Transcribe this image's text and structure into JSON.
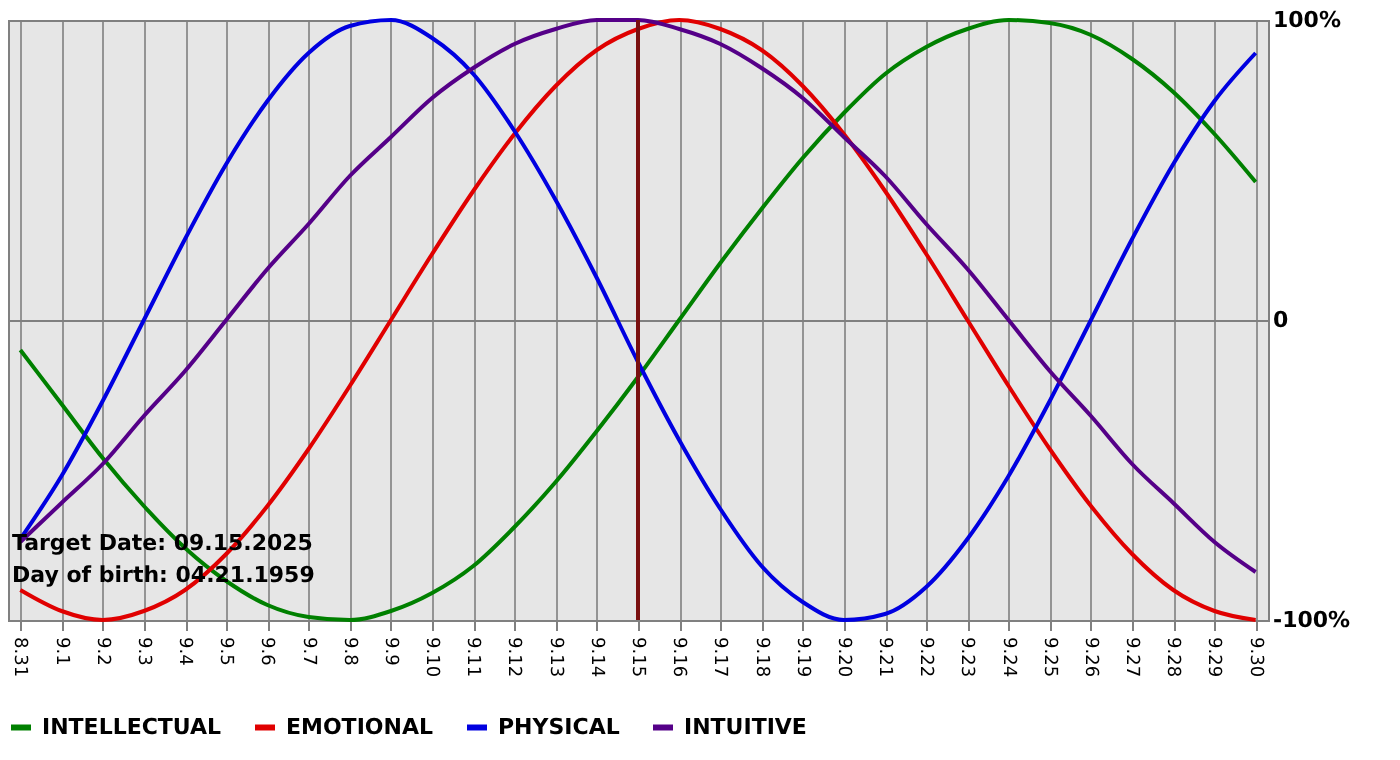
{
  "chart_data": {
    "type": "line",
    "categories": [
      "8.31",
      "9.1",
      "9.2",
      "9.3",
      "9.4",
      "9.5",
      "9.6",
      "9.7",
      "9.8",
      "9.9",
      "9.10",
      "9.11",
      "9.12",
      "9.13",
      "9.14",
      "9.15",
      "9.16",
      "9.17",
      "9.18",
      "9.19",
      "9.20",
      "9.21",
      "9.22",
      "9.23",
      "9.24",
      "9.25",
      "9.26",
      "9.27",
      "9.28",
      "9.29",
      "9.30"
    ],
    "series": [
      {
        "name": "INTELLECTUAL",
        "color": "#008000",
        "values": [
          -10,
          -28,
          -46,
          -62,
          -76,
          -87,
          -95,
          -99,
          -100,
          -97,
          -91,
          -82,
          -69,
          -54,
          -37,
          -19,
          0,
          19,
          37,
          54,
          69,
          82,
          91,
          97,
          100,
          99,
          95,
          87,
          76,
          62,
          46
        ]
      },
      {
        "name": "EMOTIONAL",
        "color": "#e00000",
        "values": [
          -90,
          -97,
          -100,
          -97,
          -90,
          -78,
          -62,
          -43,
          -22,
          0,
          22,
          43,
          62,
          78,
          90,
          97,
          100,
          97,
          90,
          78,
          62,
          43,
          22,
          0,
          -22,
          -43,
          -62,
          -78,
          -90,
          -97,
          -100
        ]
      },
      {
        "name": "PHYSICAL",
        "color": "#0000e0",
        "values": [
          -73,
          -52,
          -27,
          0,
          27,
          52,
          73,
          89,
          98,
          100,
          94,
          82,
          63,
          40,
          14,
          -14,
          -40,
          -63,
          -82,
          -94,
          -100,
          -98,
          -89,
          -73,
          -52,
          -27,
          0,
          27,
          52,
          73,
          89
        ]
      },
      {
        "name": "INTUITIVE",
        "color": "#550088",
        "values": [
          -74,
          -61,
          -48,
          -32,
          -17,
          0,
          17,
          32,
          48,
          61,
          74,
          84,
          92,
          97,
          100,
          100,
          97,
          92,
          84,
          74,
          61,
          48,
          32,
          17,
          0,
          -17,
          -32,
          -48,
          -61,
          -74,
          -84
        ]
      }
    ],
    "ylim": [
      -100,
      100
    ],
    "yticks": [
      {
        "value": -100,
        "label": "-100%"
      },
      0,
      {
        "value": 100,
        "label": "100%"
      }
    ],
    "grid": true,
    "legend": "bottom",
    "ref_lines": [
      {
        "axis": "x",
        "value": "9.15",
        "color": "#7a1010"
      }
    ],
    "annotations": [
      "Target Date: 09.15.2025",
      "Day of birth: 04.21.1959"
    ]
  }
}
